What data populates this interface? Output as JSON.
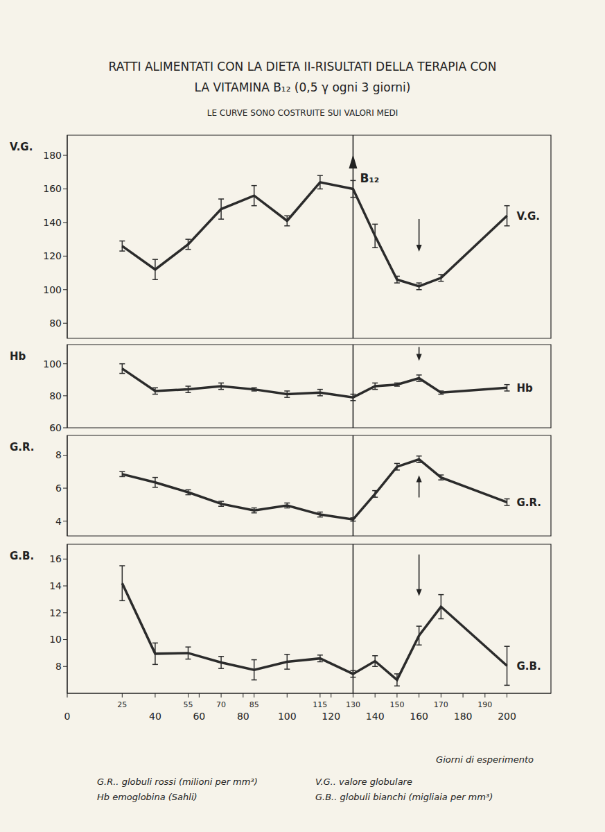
{
  "title": [
    "RATTI ALIMENTATI CON LA DIETA II-RISULTATI DELLA TERAPIA CON",
    "LA VITAMINA B₁₂ (0,5 γ ogni 3 giorni)"
  ],
  "subtitle": "LE CURVE SONO COSTRUITE SUI VALORI MEDI",
  "notes": [
    "G.R.. globuli rossi (milioni per mm³)",
    "Hb emoglobina (Sahli)",
    "V.G.. valore globulare",
    "G.B.. globuli bianchi (migliaia per mm³)"
  ],
  "chart_data": [
    {
      "type": "line",
      "y_label": "V.G.",
      "tick_labels": "y",
      "x": [
        25,
        40,
        55,
        70,
        85,
        100,
        115,
        130,
        140,
        150,
        160,
        170,
        200
      ],
      "series": [
        {
          "name": "V.G.",
          "color": "#2b2b2b",
          "values": [
            126,
            112,
            127,
            148,
            156,
            141,
            164,
            160,
            132,
            106,
            102,
            107,
            144
          ],
          "errors": [
            3,
            6,
            3,
            6,
            6,
            3,
            4,
            5,
            7,
            2,
            2,
            2,
            6
          ]
        }
      ],
      "xlim": [
        0,
        220
      ],
      "ylim": [
        71,
        192
      ],
      "yticks": [
        80,
        100,
        120,
        140,
        160,
        180
      ],
      "vline_x": 130,
      "vline_label": "B₁₂",
      "markers": [
        {
          "x": 160,
          "direction": "down"
        }
      ]
    },
    {
      "type": "line",
      "y_label": "Hb",
      "tick_labels": "y",
      "x": [
        25,
        40,
        55,
        70,
        85,
        100,
        115,
        130,
        140,
        150,
        160,
        170,
        200
      ],
      "series": [
        {
          "name": "Hb",
          "color": "#2b2b2b",
          "values": [
            97,
            83,
            84,
            86,
            84,
            81,
            82,
            79,
            86,
            87,
            91,
            82,
            85
          ],
          "errors": [
            3,
            2,
            2,
            2,
            1,
            2,
            2,
            2,
            2,
            1,
            2,
            1,
            2
          ]
        }
      ],
      "xlim": [
        0,
        220
      ],
      "ylim": [
        60,
        112
      ],
      "yticks": [
        60,
        80,
        100
      ],
      "vline_x": 130,
      "markers": [
        {
          "x": 160,
          "direction": "down"
        }
      ]
    },
    {
      "type": "line",
      "y_label": "G.R.",
      "tick_labels": "y",
      "x": [
        25,
        40,
        55,
        70,
        85,
        100,
        115,
        130,
        140,
        150,
        160,
        170,
        200
      ],
      "series": [
        {
          "name": "G.R.",
          "color": "#2b2b2b",
          "values": [
            6.85,
            6.35,
            5.75,
            5.05,
            4.65,
            4.95,
            4.4,
            4.1,
            5.65,
            7.3,
            7.75,
            6.65,
            5.15
          ],
          "errors": [
            0.15,
            0.3,
            0.15,
            0.15,
            0.15,
            0.15,
            0.15,
            0.1,
            0.2,
            0.2,
            0.2,
            0.15,
            0.2
          ]
        }
      ],
      "xlim": [
        0,
        220
      ],
      "ylim": [
        3.1,
        9.2
      ],
      "yticks": [
        4,
        6,
        8
      ],
      "vline_x": 130,
      "markers": [
        {
          "x": 160,
          "direction": "up"
        }
      ]
    },
    {
      "type": "line",
      "y_label": "G.B.",
      "x_label": "Giorni di esperimento",
      "x": [
        25,
        40,
        55,
        70,
        85,
        100,
        115,
        130,
        140,
        150,
        160,
        170,
        200
      ],
      "series": [
        {
          "name": "G.B.",
          "color": "#2b2b2b",
          "values": [
            14.2,
            8.95,
            9.0,
            8.3,
            7.75,
            8.35,
            8.6,
            7.45,
            8.4,
            7.0,
            10.3,
            12.45,
            8.05
          ],
          "errors": [
            1.3,
            0.8,
            0.45,
            0.45,
            0.75,
            0.55,
            0.25,
            0.25,
            0.4,
            0.45,
            0.7,
            0.9,
            1.45
          ]
        }
      ],
      "xlim": [
        0,
        220
      ],
      "ylim": [
        6,
        17.1
      ],
      "yticks": [
        8,
        10,
        12,
        14,
        16
      ],
      "xticks": [
        0,
        25,
        40,
        55,
        60,
        70,
        80,
        85,
        100,
        115,
        120,
        130,
        140,
        150,
        160,
        170,
        180,
        190,
        200
      ],
      "vline_x": 130,
      "markers": [
        {
          "x": 160,
          "direction": "down"
        }
      ]
    }
  ]
}
